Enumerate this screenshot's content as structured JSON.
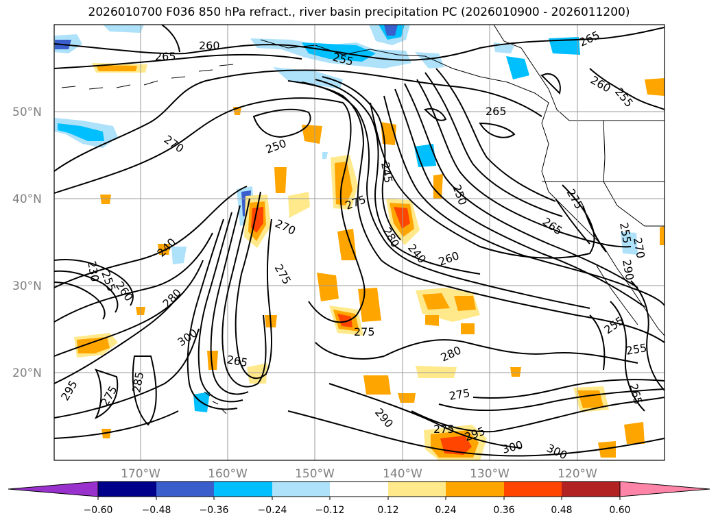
{
  "title": "2026010700 F036 850 hPa refract., river basin precipitation PC (2026010900 - 2026011200)",
  "map": {
    "lat_labels": [
      "50°N",
      "40°N",
      "30°N",
      "20°N"
    ],
    "lon_labels": [
      "170°W",
      "160°W",
      "150°W",
      "140°W",
      "130°W",
      "120°W"
    ],
    "gridlines": true,
    "contour_labels": [
      "260",
      "265",
      "255",
      "265",
      "260",
      "255",
      "265",
      "270",
      "250",
      "245",
      "250",
      "275",
      "270",
      "280",
      "275",
      "240",
      "260",
      "265",
      "275",
      "255",
      "270",
      "240",
      "230",
      "255",
      "260",
      "280",
      "300",
      "295",
      "265",
      "275",
      "275",
      "280",
      "290",
      "275",
      "295",
      "300",
      "300",
      "275",
      "255",
      "255",
      "265",
      "285",
      "290"
    ]
  },
  "colorbar": {
    "ticks": [
      "−0.60",
      "−0.48",
      "−0.36",
      "−0.24",
      "−0.12",
      "0.12",
      "0.24",
      "0.36",
      "0.48",
      "0.60"
    ],
    "colors": [
      "#9932cc",
      "#00008b",
      "#3a5fcd",
      "#00bfff",
      "#aee2fa",
      "#ffffff",
      "#ffe98a",
      "#ffa500",
      "#ff4500",
      "#b22222",
      "#ff85a8"
    ]
  },
  "fill_colors": {
    "neg_light": "#aee2fa",
    "neg_mid": "#00bfff",
    "neg_dark": "#3a5fcd",
    "neg_darkest": "#00008b",
    "pos_light": "#ffe98a",
    "pos_mid": "#ffa500",
    "pos_dark": "#ff4500",
    "pos_darkest": "#b22222"
  }
}
